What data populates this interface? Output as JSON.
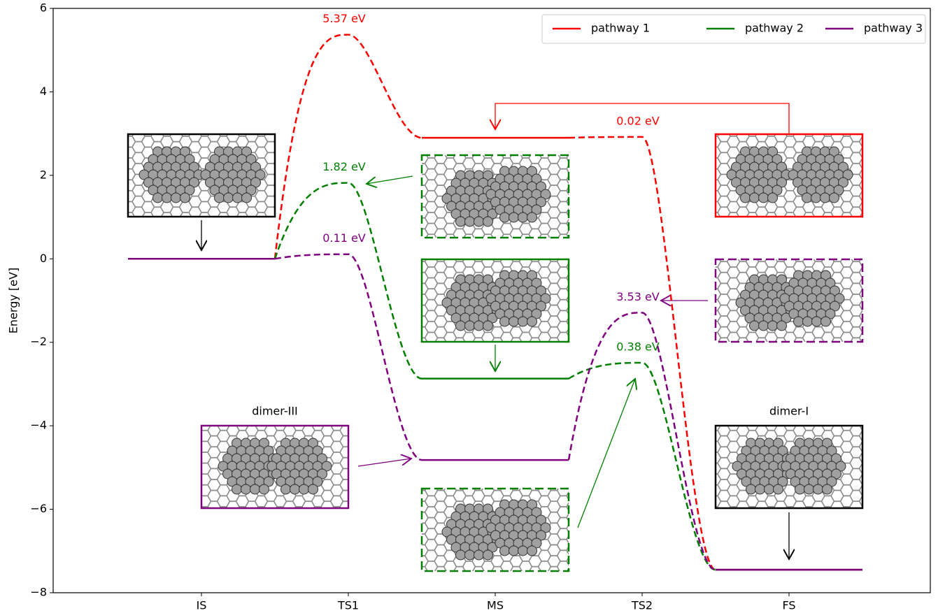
{
  "chart_data": {
    "type": "energy-diagram",
    "ylabel": "Energy [eV]",
    "categories": [
      "IS",
      "TS1",
      "MS",
      "TS2",
      "FS"
    ],
    "ylim": [
      -8,
      6
    ],
    "yticks": [
      {
        "value": -8,
        "label": "−8"
      },
      {
        "value": -6,
        "label": "−6"
      },
      {
        "value": -4,
        "label": "−4"
      },
      {
        "value": -2,
        "label": "−2"
      },
      0,
      2,
      4,
      6
    ],
    "legend": "upper right",
    "series": [
      {
        "name": "pathway 1",
        "color": "#ff0000",
        "values": [
          0,
          5.37,
          2.9,
          2.92,
          -7.45
        ],
        "annotations": [
          null,
          "5.37 eV",
          null,
          "0.02 eV",
          null
        ]
      },
      {
        "name": "pathway 2",
        "color": "#008000",
        "values": [
          0,
          1.82,
          -2.87,
          -2.49,
          -7.45
        ],
        "annotations": [
          null,
          "1.82 eV",
          null,
          "0.38 eV",
          null
        ]
      },
      {
        "name": "pathway 3",
        "color": "#800080",
        "values": [
          0,
          0.11,
          -4.82,
          -1.29,
          -7.45
        ],
        "annotations": [
          null,
          "0.11 eV",
          null,
          "3.53 eV",
          null
        ]
      }
    ],
    "structure_labels": [
      "dimer-III",
      "dimer-I"
    ]
  }
}
